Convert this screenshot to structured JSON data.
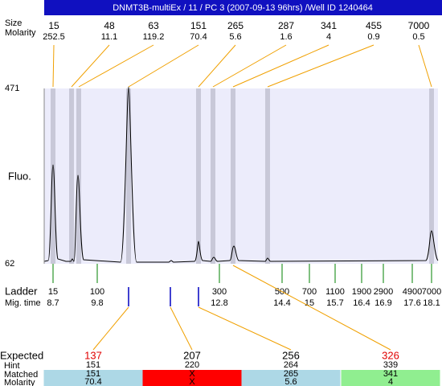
{
  "header": {
    "title": "DNMT3B-multiEx / 11 / PC 3 (2007-09-13 96hrs) /Well ID 1240464"
  },
  "peaks": {
    "size_label": "Size",
    "molarity_label": "Molarity",
    "sizes": [
      15,
      48,
      63,
      151,
      265,
      287,
      341,
      455,
      7000
    ],
    "molarities": [
      252.5,
      11.1,
      119.2,
      70.4,
      5.6,
      1.6,
      4,
      0.9,
      0.5
    ]
  },
  "plot": {
    "y_label": "Fluo.",
    "y_max": 471,
    "y_min": 62
  },
  "ladder": {
    "label": "Ladder",
    "time_label": "Mig. time",
    "sizes": [
      15,
      100,
      300,
      500,
      700,
      1100,
      1900,
      2900,
      4900,
      7000
    ],
    "times": [
      8.7,
      9.8,
      12.8,
      14.4,
      15,
      15.7,
      16.4,
      16.9,
      17.6,
      18.1
    ]
  },
  "expected": {
    "labels": {
      "expected": "Expected",
      "hint": "Hint",
      "matched": "Matched",
      "molarity": "Molarity"
    },
    "columns": [
      {
        "expected": 137,
        "hint": 151,
        "matched": 151,
        "molarity": 70.4
      },
      {
        "expected": 207,
        "hint": 220,
        "matched": "X",
        "molarity": "X"
      },
      {
        "expected": 256,
        "hint": 264,
        "matched": 265,
        "molarity": 5.6
      },
      {
        "expected": 326,
        "hint": 339,
        "matched": 341,
        "molarity": 4
      }
    ]
  }
}
